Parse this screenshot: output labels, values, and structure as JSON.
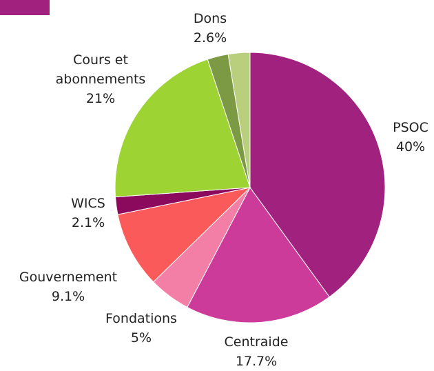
{
  "chart_data": {
    "type": "pie",
    "categories": [
      "PSOC",
      "Centraide",
      "Fondations",
      "Gouvernement",
      "WICS",
      "Cours et abonnements",
      null,
      "Dons"
    ],
    "values": [
      40,
      17.7,
      5,
      9.1,
      2.1,
      21,
      2.5,
      2.6
    ],
    "value_labels": [
      "40%",
      "17.7%",
      "5%",
      "9.1%",
      "2.1%",
      "21%",
      null,
      "2.6%"
    ],
    "colors": [
      "#a0217e",
      "#cc3a9a",
      "#f47fa6",
      "#fb5a5a",
      "#8b0a5e",
      "#9dd332",
      "#7c9a44",
      "#b9cf7d"
    ]
  }
}
